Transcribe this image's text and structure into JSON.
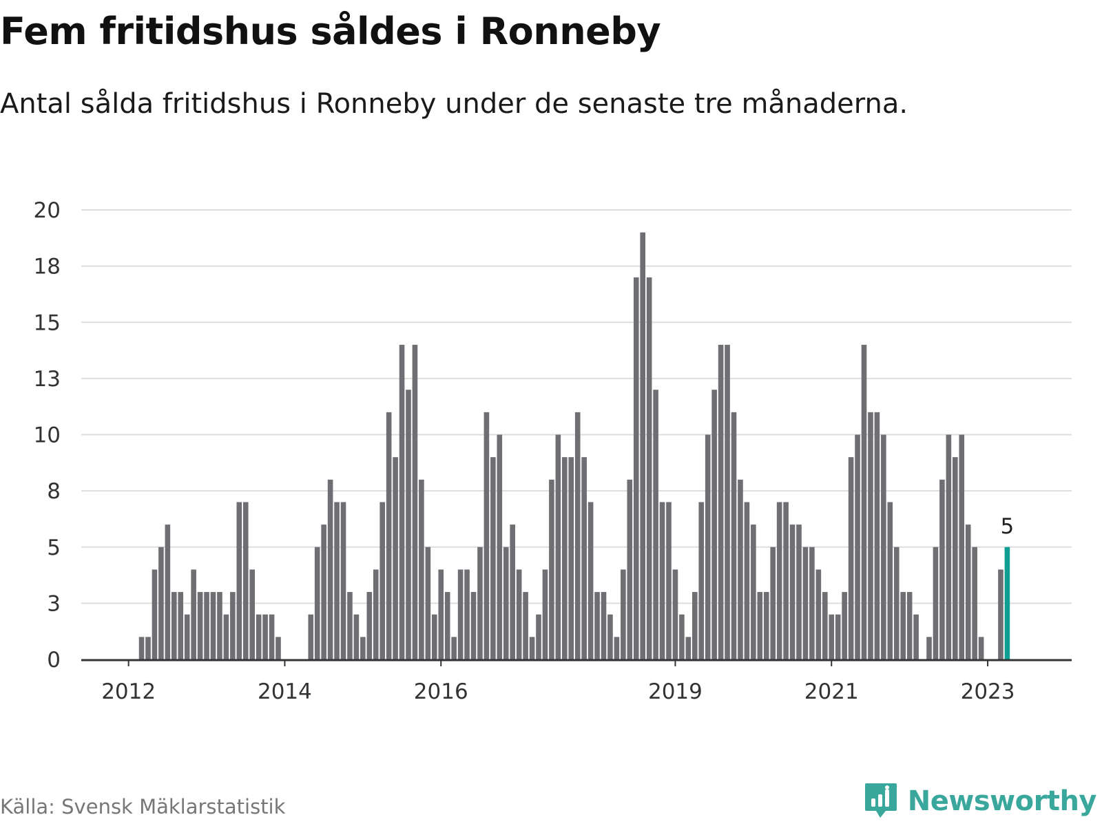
{
  "title": "Fem fritidshus såldes i Ronneby",
  "subtitle": "Antal sålda fritidshus i Ronneby under de senaste tre månaderna.",
  "source": "Källa: Svensk Mäklarstatistik",
  "brand": "Newsworthy",
  "colors": {
    "bar": "#6e6e73",
    "highlight": "#0f9e92",
    "brand": "#3aa79d",
    "grid": "#dddddd",
    "axis": "#333333"
  },
  "chart_data": {
    "type": "bar",
    "y_tick_labels": [
      "0",
      "3",
      "5",
      "8",
      "10",
      "13",
      "15",
      "18",
      "20"
    ],
    "ylim": [
      0,
      20
    ],
    "x_tick_labels": [
      {
        "label": "2012",
        "index": 7
      },
      {
        "label": "2014",
        "index": 31
      },
      {
        "label": "2016",
        "index": 55
      },
      {
        "label": "2019",
        "index": 91
      },
      {
        "label": "2021",
        "index": 115
      },
      {
        "label": "2023",
        "index": 139
      }
    ],
    "values": [
      0,
      0,
      0,
      0,
      0,
      0,
      0,
      0,
      0,
      1,
      1,
      4,
      5,
      6,
      3,
      3,
      2,
      4,
      3,
      3,
      3,
      3,
      2,
      3,
      7,
      7,
      4,
      2,
      2,
      2,
      1,
      0,
      0,
      0,
      0,
      2,
      5,
      6,
      8,
      7,
      7,
      3,
      2,
      1,
      3,
      4,
      7,
      11,
      9,
      14,
      12,
      14,
      8,
      5,
      2,
      4,
      3,
      1,
      4,
      4,
      3,
      5,
      11,
      9,
      10,
      5,
      6,
      4,
      3,
      1,
      2,
      4,
      8,
      10,
      9,
      9,
      11,
      9,
      7,
      3,
      3,
      2,
      1,
      4,
      8,
      17,
      19,
      17,
      12,
      7,
      7,
      4,
      2,
      1,
      3,
      7,
      10,
      12,
      14,
      14,
      11,
      8,
      7,
      6,
      3,
      3,
      5,
      7,
      7,
      6,
      6,
      5,
      5,
      4,
      3,
      2,
      2,
      3,
      9,
      10,
      14,
      11,
      11,
      10,
      7,
      5,
      3,
      3,
      2,
      0,
      1,
      5,
      8,
      10,
      9,
      10,
      6,
      5,
      1,
      0,
      0,
      4,
      5
    ],
    "highlight_index": 142,
    "highlight_label": "5"
  }
}
